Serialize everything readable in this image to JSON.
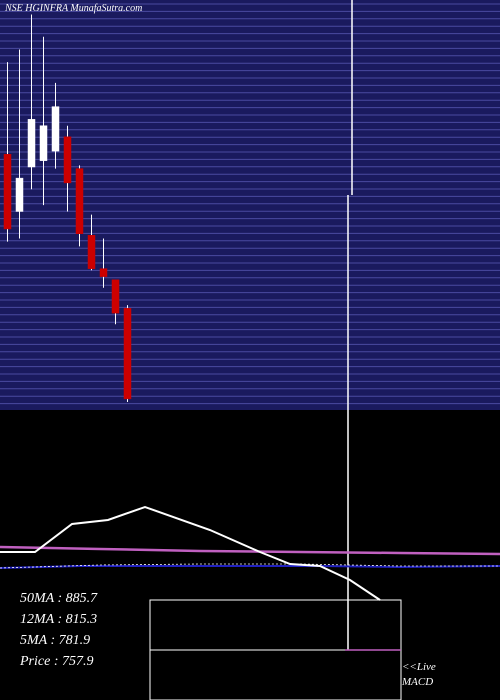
{
  "header": {
    "title": "NSE HGINFRA MunafaSutra.com"
  },
  "stats": {
    "ma50": "50MA : 885.7",
    "ma12": "12MA : 815.3",
    "ma5": "5MA : 781.9",
    "price": "Price   : 757.9"
  },
  "macd": {
    "live_label": "<<Live",
    "macd_label": "MACD"
  },
  "colors": {
    "background": "#000000",
    "grid_panel": "#1a1a5e",
    "grid_line": "#4a4aa0",
    "candle_up": "#ffffff",
    "candle_down": "#cc0000",
    "ma_white": "#ffffff",
    "ma_purple": "#c060c0",
    "ma_blue": "#2020c0"
  },
  "chart_data": {
    "type": "candlestick",
    "candles": [
      {
        "open": 1196,
        "high": 1254,
        "low": 1141,
        "close": 1149
      },
      {
        "open": 1160,
        "high": 1262,
        "low": 1143,
        "close": 1181
      },
      {
        "open": 1188,
        "high": 1284,
        "low": 1174,
        "close": 1218
      },
      {
        "open": 1192,
        "high": 1270,
        "low": 1164,
        "close": 1214
      },
      {
        "open": 1198,
        "high": 1241,
        "low": 1187,
        "close": 1226
      },
      {
        "open": 1207,
        "high": 1214,
        "low": 1160,
        "close": 1178
      },
      {
        "open": 1187,
        "high": 1189,
        "low": 1138,
        "close": 1146
      },
      {
        "open": 1145,
        "high": 1158,
        "low": 1123,
        "close": 1124
      },
      {
        "open": 1124,
        "high": 1143,
        "low": 1112,
        "close": 1119
      },
      {
        "open": 1117,
        "high": 1117,
        "low": 1089,
        "close": 1096
      },
      {
        "open": 1099,
        "high": 1101,
        "low": 1040,
        "close": 1042
      }
    ],
    "moving_averages": [
      {
        "name": "50MA",
        "value": 885.7
      },
      {
        "name": "12MA",
        "value": 815.3
      },
      {
        "name": "5MA",
        "value": 781.9
      }
    ],
    "price": 757.9
  }
}
